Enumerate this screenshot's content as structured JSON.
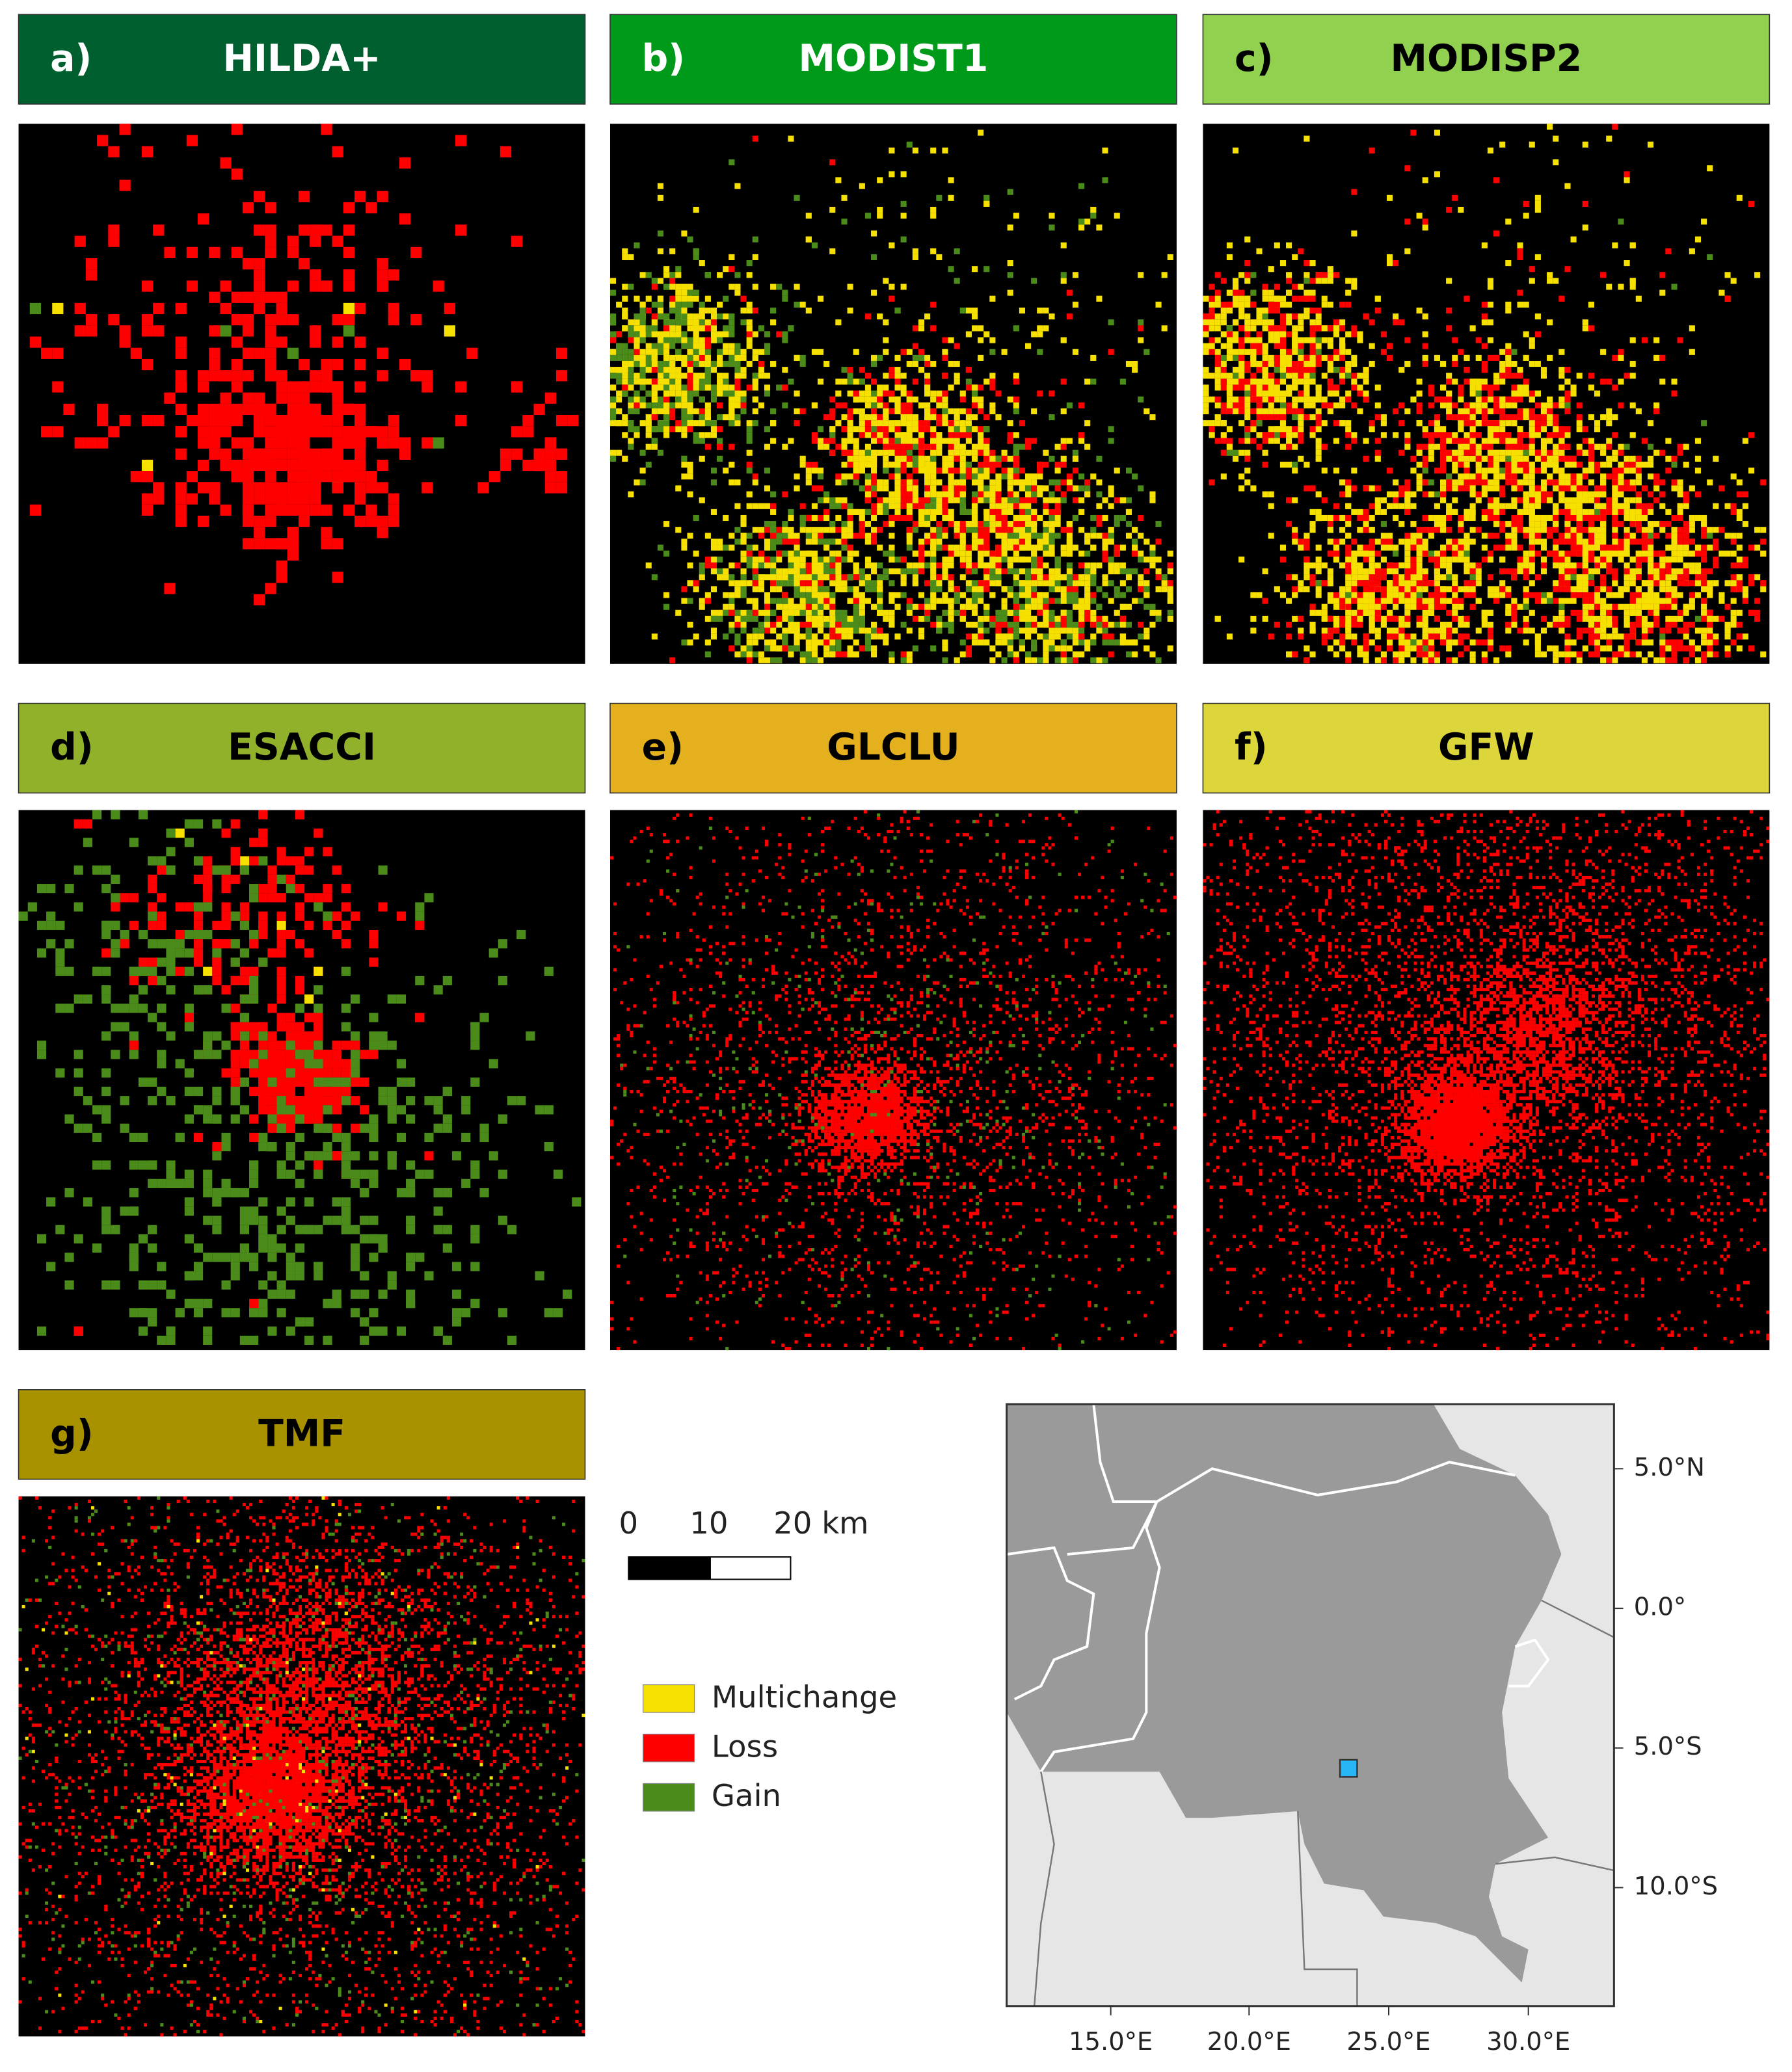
{
  "panels": [
    {
      "label": "a)",
      "title": "HILDA+",
      "color": "#005f2f"
    },
    {
      "label": "b)",
      "title": "MODIST1",
      "color": "#009a1a"
    },
    {
      "label": "c)",
      "title": "MODISP2",
      "color": "#92d050"
    },
    {
      "label": "d)",
      "title": "ESACCI",
      "color": "#92b12a"
    },
    {
      "label": "e)",
      "title": "GLCLU",
      "color": "#e5b01d"
    },
    {
      "label": "f)",
      "title": "GFW",
      "color": "#dcd63a"
    },
    {
      "label": "g)",
      "title": "TMF",
      "color": "#a89200"
    }
  ],
  "scale_bar": {
    "labels": [
      "0",
      "10",
      "20 km"
    ]
  },
  "legend": [
    {
      "label": "Multichange",
      "color": "#f5e000"
    },
    {
      "label": "Loss",
      "color": "#ff0000"
    },
    {
      "label": "Gain",
      "color": "#4b8b1a"
    }
  ],
  "inset_map": {
    "lat_labels": [
      "5.0°N",
      "0.0°",
      "5.0°S",
      "10.0°S"
    ],
    "lon_labels": [
      "15.0°E",
      "20.0°E",
      "25.0°E",
      "30.0°E"
    ]
  }
}
